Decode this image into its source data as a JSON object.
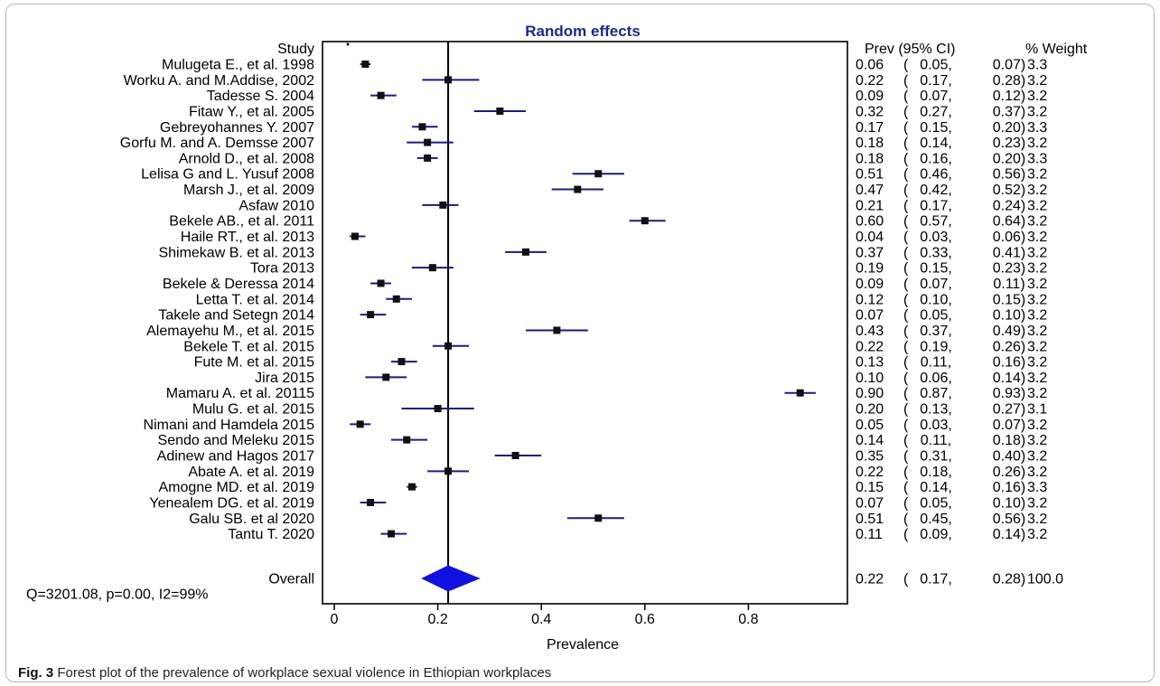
{
  "chart_data": {
    "type": "forest",
    "title": "Random effects",
    "xlabel": "Prevalence",
    "xlim": [
      0,
      1
    ],
    "xticks": [
      0,
      0.2,
      0.4,
      0.6,
      0.8
    ],
    "xtick_labels": [
      "0",
      "0.2",
      "0.4",
      "0.6",
      "0.8"
    ],
    "reference_line": 0.22,
    "headers": {
      "study": "Study",
      "ci": "Prev (95% CI)",
      "weight": "% Weight"
    },
    "studies": [
      {
        "name": "Mulugeta E., et al. 1998",
        "prev": 0.06,
        "lo": 0.05,
        "hi": 0.07,
        "prev_label": "0.06",
        "lo_label": "0.05,",
        "hi_label": "0.07)",
        "weight": "3.3"
      },
      {
        "name": "Worku A. and M.Addise, 2002",
        "prev": 0.22,
        "lo": 0.17,
        "hi": 0.28,
        "prev_label": "0.22",
        "lo_label": "0.17,",
        "hi_label": "0.28)",
        "weight": "3.2"
      },
      {
        "name": "Tadesse S. 2004",
        "prev": 0.09,
        "lo": 0.07,
        "hi": 0.12,
        "prev_label": "0.09",
        "lo_label": "0.07,",
        "hi_label": "0.12)",
        "weight": "3.2"
      },
      {
        "name": "Fitaw Y., et al. 2005",
        "prev": 0.32,
        "lo": 0.27,
        "hi": 0.37,
        "prev_label": "0.32",
        "lo_label": "0.27,",
        "hi_label": "0.37)",
        "weight": "3.2"
      },
      {
        "name": "Gebreyohannes Y. 2007",
        "prev": 0.17,
        "lo": 0.15,
        "hi": 0.2,
        "prev_label": "0.17",
        "lo_label": "0.15,",
        "hi_label": "0.20)",
        "weight": "3.3"
      },
      {
        "name": "Gorfu M. and A. Demsse 2007",
        "prev": 0.18,
        "lo": 0.14,
        "hi": 0.23,
        "prev_label": "0.18",
        "lo_label": "0.14,",
        "hi_label": "0.23)",
        "weight": "3.2"
      },
      {
        "name": "Arnold D., et al. 2008",
        "prev": 0.18,
        "lo": 0.16,
        "hi": 0.2,
        "prev_label": "0.18",
        "lo_label": "0.16,",
        "hi_label": "0.20)",
        "weight": "3.3"
      },
      {
        "name": "Lelisa G and L. Yusuf 2008",
        "prev": 0.51,
        "lo": 0.46,
        "hi": 0.56,
        "prev_label": "0.51",
        "lo_label": "0.46,",
        "hi_label": "0.56)",
        "weight": "3.2"
      },
      {
        "name": "Marsh J., et al. 2009",
        "prev": 0.47,
        "lo": 0.42,
        "hi": 0.52,
        "prev_label": "0.47",
        "lo_label": "0.42,",
        "hi_label": "0.52)",
        "weight": "3.2"
      },
      {
        "name": "Asfaw 2010",
        "prev": 0.21,
        "lo": 0.17,
        "hi": 0.24,
        "prev_label": "0.21",
        "lo_label": "0.17,",
        "hi_label": "0.24)",
        "weight": "3.2"
      },
      {
        "name": "Bekele AB., et al. 2011",
        "prev": 0.6,
        "lo": 0.57,
        "hi": 0.64,
        "prev_label": "0.60",
        "lo_label": "0.57,",
        "hi_label": "0.64)",
        "weight": "3.2"
      },
      {
        "name": "Haile RT., et al. 2013",
        "prev": 0.04,
        "lo": 0.03,
        "hi": 0.06,
        "prev_label": "0.04",
        "lo_label": "0.03,",
        "hi_label": "0.06)",
        "weight": "3.2"
      },
      {
        "name": "Shimekaw B. et al. 2013",
        "prev": 0.37,
        "lo": 0.33,
        "hi": 0.41,
        "prev_label": "0.37",
        "lo_label": "0.33,",
        "hi_label": "0.41)",
        "weight": "3.2"
      },
      {
        "name": "Tora 2013",
        "prev": 0.19,
        "lo": 0.15,
        "hi": 0.23,
        "prev_label": "0.19",
        "lo_label": "0.15,",
        "hi_label": "0.23)",
        "weight": "3.2"
      },
      {
        "name": "Bekele & Deressa 2014",
        "prev": 0.09,
        "lo": 0.07,
        "hi": 0.11,
        "prev_label": "0.09",
        "lo_label": "0.07,",
        "hi_label": "0.11)",
        "weight": "3.2"
      },
      {
        "name": "Letta T. et al. 2014",
        "prev": 0.12,
        "lo": 0.1,
        "hi": 0.15,
        "prev_label": "0.12",
        "lo_label": "0.10,",
        "hi_label": "0.15)",
        "weight": "3.2"
      },
      {
        "name": "Takele and Setegn 2014",
        "prev": 0.07,
        "lo": 0.05,
        "hi": 0.1,
        "prev_label": "0.07",
        "lo_label": "0.05,",
        "hi_label": "0.10)",
        "weight": "3.2"
      },
      {
        "name": "Alemayehu M., et al. 2015",
        "prev": 0.43,
        "lo": 0.37,
        "hi": 0.49,
        "prev_label": "0.43",
        "lo_label": "0.37,",
        "hi_label": "0.49)",
        "weight": "3.2"
      },
      {
        "name": "Bekele T. et al. 2015",
        "prev": 0.22,
        "lo": 0.19,
        "hi": 0.26,
        "prev_label": "0.22",
        "lo_label": "0.19,",
        "hi_label": "0.26)",
        "weight": "3.2"
      },
      {
        "name": "Fute M. et al. 2015",
        "prev": 0.13,
        "lo": 0.11,
        "hi": 0.16,
        "prev_label": "0.13",
        "lo_label": "0.11,",
        "hi_label": "0.16)",
        "weight": "3.2"
      },
      {
        "name": "Jira 2015",
        "prev": 0.1,
        "lo": 0.06,
        "hi": 0.14,
        "prev_label": "0.10",
        "lo_label": "0.06,",
        "hi_label": "0.14)",
        "weight": "3.2"
      },
      {
        "name": "Mamaru A. et al. 20115",
        "prev": 0.9,
        "lo": 0.87,
        "hi": 0.93,
        "prev_label": "0.90",
        "lo_label": "0.87,",
        "hi_label": "0.93)",
        "weight": "3.2"
      },
      {
        "name": "Mulu G. et al. 2015",
        "prev": 0.2,
        "lo": 0.13,
        "hi": 0.27,
        "prev_label": "0.20",
        "lo_label": "0.13,",
        "hi_label": "0.27)",
        "weight": "3.1"
      },
      {
        "name": "Nimani and Hamdela 2015",
        "prev": 0.05,
        "lo": 0.03,
        "hi": 0.07,
        "prev_label": "0.05",
        "lo_label": "0.03,",
        "hi_label": "0.07)",
        "weight": "3.2"
      },
      {
        "name": "Sendo and Meleku 2015",
        "prev": 0.14,
        "lo": 0.11,
        "hi": 0.18,
        "prev_label": "0.14",
        "lo_label": "0.11,",
        "hi_label": "0.18)",
        "weight": "3.2"
      },
      {
        "name": "Adinew and Hagos 2017",
        "prev": 0.35,
        "lo": 0.31,
        "hi": 0.4,
        "prev_label": "0.35",
        "lo_label": "0.31,",
        "hi_label": "0.40)",
        "weight": "3.2"
      },
      {
        "name": "Abate A. et al. 2019",
        "prev": 0.22,
        "lo": 0.18,
        "hi": 0.26,
        "prev_label": "0.22",
        "lo_label": "0.18,",
        "hi_label": "0.26)",
        "weight": "3.2"
      },
      {
        "name": "Amogne MD. et al. 2019",
        "prev": 0.15,
        "lo": 0.14,
        "hi": 0.16,
        "prev_label": "0.15",
        "lo_label": "0.14,",
        "hi_label": "0.16)",
        "weight": "3.3"
      },
      {
        "name": "Yenealem DG. et al. 2019",
        "prev": 0.07,
        "lo": 0.05,
        "hi": 0.1,
        "prev_label": "0.07",
        "lo_label": "0.05,",
        "hi_label": "0.10)",
        "weight": "3.2"
      },
      {
        "name": "Galu SB. et al 2020",
        "prev": 0.51,
        "lo": 0.45,
        "hi": 0.56,
        "prev_label": "0.51",
        "lo_label": "0.45,",
        "hi_label": "0.56)",
        "weight": "3.2"
      },
      {
        "name": "Tantu T. 2020",
        "prev": 0.11,
        "lo": 0.09,
        "hi": 0.14,
        "prev_label": "0.11",
        "lo_label": "0.09,",
        "hi_label": "0.14)",
        "weight": "3.2"
      }
    ],
    "overall": {
      "name": "Overall",
      "prev": 0.22,
      "lo": 0.17,
      "hi": 0.28,
      "prev_label": "0.22",
      "lo_label": "0.17,",
      "hi_label": "0.28)",
      "weight": "100.0"
    },
    "heterogeneity": "Q=3201.08, p=0.00, I2=99%",
    "colors": {
      "marker": "#111111",
      "ci": "#1a1a8c",
      "diamond": "#1010e0",
      "title": "#1a2b8c",
      "axis": "#000000"
    }
  },
  "caption": {
    "label": "Fig. 3",
    "text": "Forest plot of the prevalence of workplace sexual violence in Ethiopian workplaces"
  }
}
